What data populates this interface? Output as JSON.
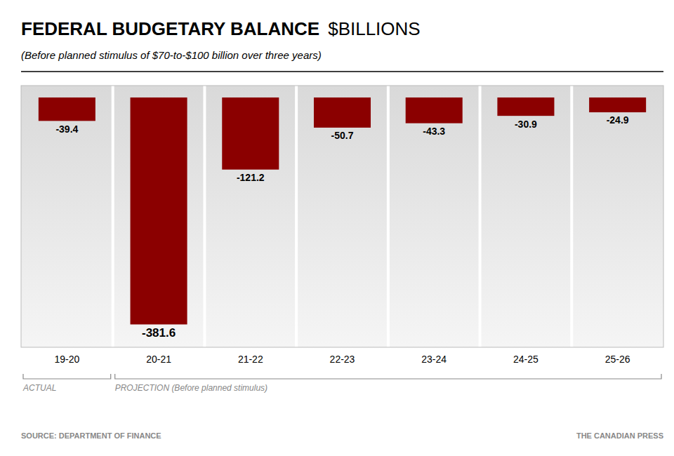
{
  "chart_data": {
    "type": "bar",
    "title": "FEDERAL BUDGETARY BALANCE",
    "ylabel": "$BILLIONS",
    "subtitle": "(Before planned stimulus of $70-to-$100 billion over three years)",
    "categories": [
      "19-20",
      "20-21",
      "21-22",
      "22-23",
      "23-24",
      "24-25",
      "25-26"
    ],
    "values": [
      -39.4,
      -381.6,
      -121.2,
      -50.7,
      -43.3,
      -30.9,
      -24.9
    ],
    "color": "#8B0000",
    "ylim": [
      -420,
      20
    ],
    "grid": false,
    "tick_labels": "x",
    "data_labels": true,
    "annotations": [
      {
        "text": "ACTUAL",
        "from": "19-20",
        "to": "19-20"
      },
      {
        "text": "PROJECTION (Before planned stimulus)",
        "from": "20-21",
        "to": "25-26"
      }
    ],
    "source": "SOURCE: DEPARTMENT OF FINANCE",
    "credit": "THE CANADIAN PRESS"
  }
}
